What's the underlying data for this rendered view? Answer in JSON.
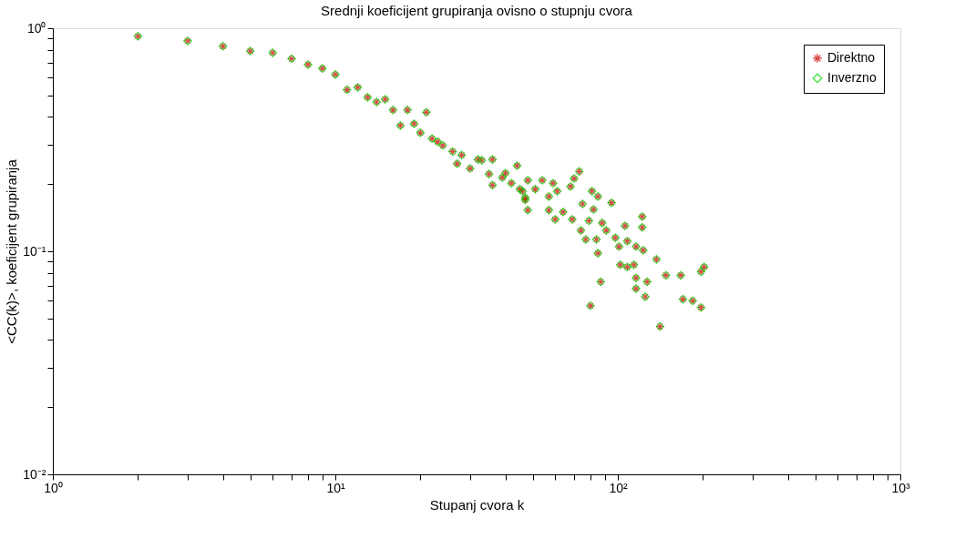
{
  "chart_data": {
    "type": "scatter",
    "title": "Srednji koeficijent grupiranja ovisno o stupnju cvora",
    "xlabel": "Stupanj cvora k",
    "ylabel": "<CC(k)>, koeficijent grupiranja",
    "log": "xy",
    "grid": false,
    "legend": "top right",
    "x": [
      2,
      3,
      4,
      5,
      6,
      7,
      8,
      9,
      10,
      11,
      12,
      13,
      14,
      15,
      16,
      18,
      21,
      17,
      19,
      20,
      22,
      23,
      24,
      26,
      28,
      27,
      30,
      32,
      33,
      36,
      35,
      36,
      39,
      40,
      44,
      42,
      48,
      46,
      47,
      48,
      45,
      47,
      54,
      59,
      51,
      57,
      61,
      57,
      60,
      64,
      69,
      68,
      70,
      73,
      75,
      81,
      85,
      95,
      82,
      79,
      74,
      77,
      84,
      85,
      88,
      91,
      98,
      106,
      108,
      101,
      116,
      122,
      122,
      123,
      102,
      108,
      114,
      137,
      116,
      127,
      116,
      125,
      148,
      167,
      202,
      197,
      87,
      80,
      141,
      170,
      184,
      197
    ],
    "xlim": [
      1,
      1000
    ],
    "ylim": [
      0.01,
      1
    ],
    "xticks": [
      {
        "value": 1,
        "label": "10⁰"
      },
      {
        "value": 2,
        "label": null
      },
      {
        "value": 3,
        "label": null
      },
      {
        "value": 4,
        "label": null
      },
      {
        "value": 5,
        "label": null
      },
      {
        "value": 6,
        "label": null
      },
      {
        "value": 7,
        "label": null
      },
      {
        "value": 8,
        "label": null
      },
      {
        "value": 9,
        "label": null
      },
      {
        "value": 10,
        "label": "10¹"
      },
      {
        "value": 20,
        "label": null
      },
      {
        "value": 30,
        "label": null
      },
      {
        "value": 40,
        "label": null
      },
      {
        "value": 50,
        "label": null
      },
      {
        "value": 60,
        "label": null
      },
      {
        "value": 70,
        "label": null
      },
      {
        "value": 80,
        "label": null
      },
      {
        "value": 90,
        "label": null
      },
      {
        "value": 100,
        "label": "10²"
      },
      {
        "value": 200,
        "label": null
      },
      {
        "value": 300,
        "label": null
      },
      {
        "value": 400,
        "label": null
      },
      {
        "value": 500,
        "label": null
      },
      {
        "value": 600,
        "label": null
      },
      {
        "value": 700,
        "label": null
      },
      {
        "value": 800,
        "label": null
      },
      {
        "value": 900,
        "label": null
      },
      {
        "value": 1000,
        "label": "10³"
      }
    ],
    "yticks": [
      {
        "value": 0.01,
        "label": "10⁻²"
      },
      {
        "value": 0.02,
        "label": null
      },
      {
        "value": 0.03,
        "label": null
      },
      {
        "value": 0.04,
        "label": null
      },
      {
        "value": 0.05,
        "label": null
      },
      {
        "value": 0.06,
        "label": null
      },
      {
        "value": 0.07,
        "label": null
      },
      {
        "value": 0.08,
        "label": null
      },
      {
        "value": 0.09,
        "label": null
      },
      {
        "value": 0.1,
        "label": "10⁻¹"
      },
      {
        "value": 0.2,
        "label": null
      },
      {
        "value": 0.3,
        "label": null
      },
      {
        "value": 0.4,
        "label": null
      },
      {
        "value": 0.5,
        "label": null
      },
      {
        "value": 0.6,
        "label": null
      },
      {
        "value": 0.7,
        "label": null
      },
      {
        "value": 0.8,
        "label": null
      },
      {
        "value": 0.9,
        "label": null
      },
      {
        "value": 1,
        "label": "10⁰"
      }
    ],
    "series": [
      {
        "name": "Direktno",
        "color": "#cc0000",
        "marker": "cross",
        "values": [
          0.92,
          0.877,
          0.83,
          0.79,
          0.776,
          0.73,
          0.687,
          0.66,
          0.62,
          0.53,
          0.543,
          0.49,
          0.467,
          0.48,
          0.43,
          0.43,
          0.42,
          0.366,
          0.373,
          0.34,
          0.32,
          0.31,
          0.298,
          0.28,
          0.27,
          0.247,
          0.235,
          0.258,
          0.256,
          0.258,
          0.222,
          0.198,
          0.214,
          0.224,
          0.242,
          0.202,
          0.208,
          0.186,
          0.17,
          0.153,
          0.19,
          0.174,
          0.208,
          0.202,
          0.19,
          0.176,
          0.186,
          0.153,
          0.139,
          0.15,
          0.139,
          0.195,
          0.212,
          0.228,
          0.163,
          0.186,
          0.176,
          0.165,
          0.154,
          0.137,
          0.124,
          0.113,
          0.113,
          0.098,
          0.134,
          0.124,
          0.115,
          0.13,
          0.111,
          0.105,
          0.105,
          0.143,
          0.128,
          0.101,
          0.087,
          0.085,
          0.087,
          0.092,
          0.076,
          0.073,
          0.068,
          0.0625,
          0.078,
          0.078,
          0.085,
          0.081,
          0.073,
          0.057,
          0.046,
          0.061,
          0.06,
          0.056
        ]
      },
      {
        "name": "Inverzno",
        "color": "#00dd00",
        "marker": "diamond",
        "values": [
          0.92,
          0.877,
          0.83,
          0.79,
          0.776,
          0.73,
          0.687,
          0.66,
          0.62,
          0.53,
          0.543,
          0.49,
          0.467,
          0.48,
          0.43,
          0.43,
          0.42,
          0.366,
          0.373,
          0.34,
          0.32,
          0.31,
          0.298,
          0.28,
          0.27,
          0.247,
          0.235,
          0.258,
          0.256,
          0.258,
          0.222,
          0.198,
          0.214,
          0.224,
          0.242,
          0.202,
          0.208,
          0.186,
          0.17,
          0.153,
          0.19,
          0.174,
          0.208,
          0.202,
          0.19,
          0.176,
          0.186,
          0.153,
          0.139,
          0.15,
          0.139,
          0.195,
          0.212,
          0.228,
          0.163,
          0.186,
          0.176,
          0.165,
          0.154,
          0.137,
          0.124,
          0.113,
          0.113,
          0.098,
          0.134,
          0.124,
          0.115,
          0.13,
          0.111,
          0.105,
          0.105,
          0.143,
          0.128,
          0.101,
          0.087,
          0.085,
          0.087,
          0.092,
          0.076,
          0.073,
          0.068,
          0.0625,
          0.078,
          0.078,
          0.085,
          0.081,
          0.073,
          0.057,
          0.046,
          0.061,
          0.06,
          0.056
        ]
      }
    ]
  }
}
